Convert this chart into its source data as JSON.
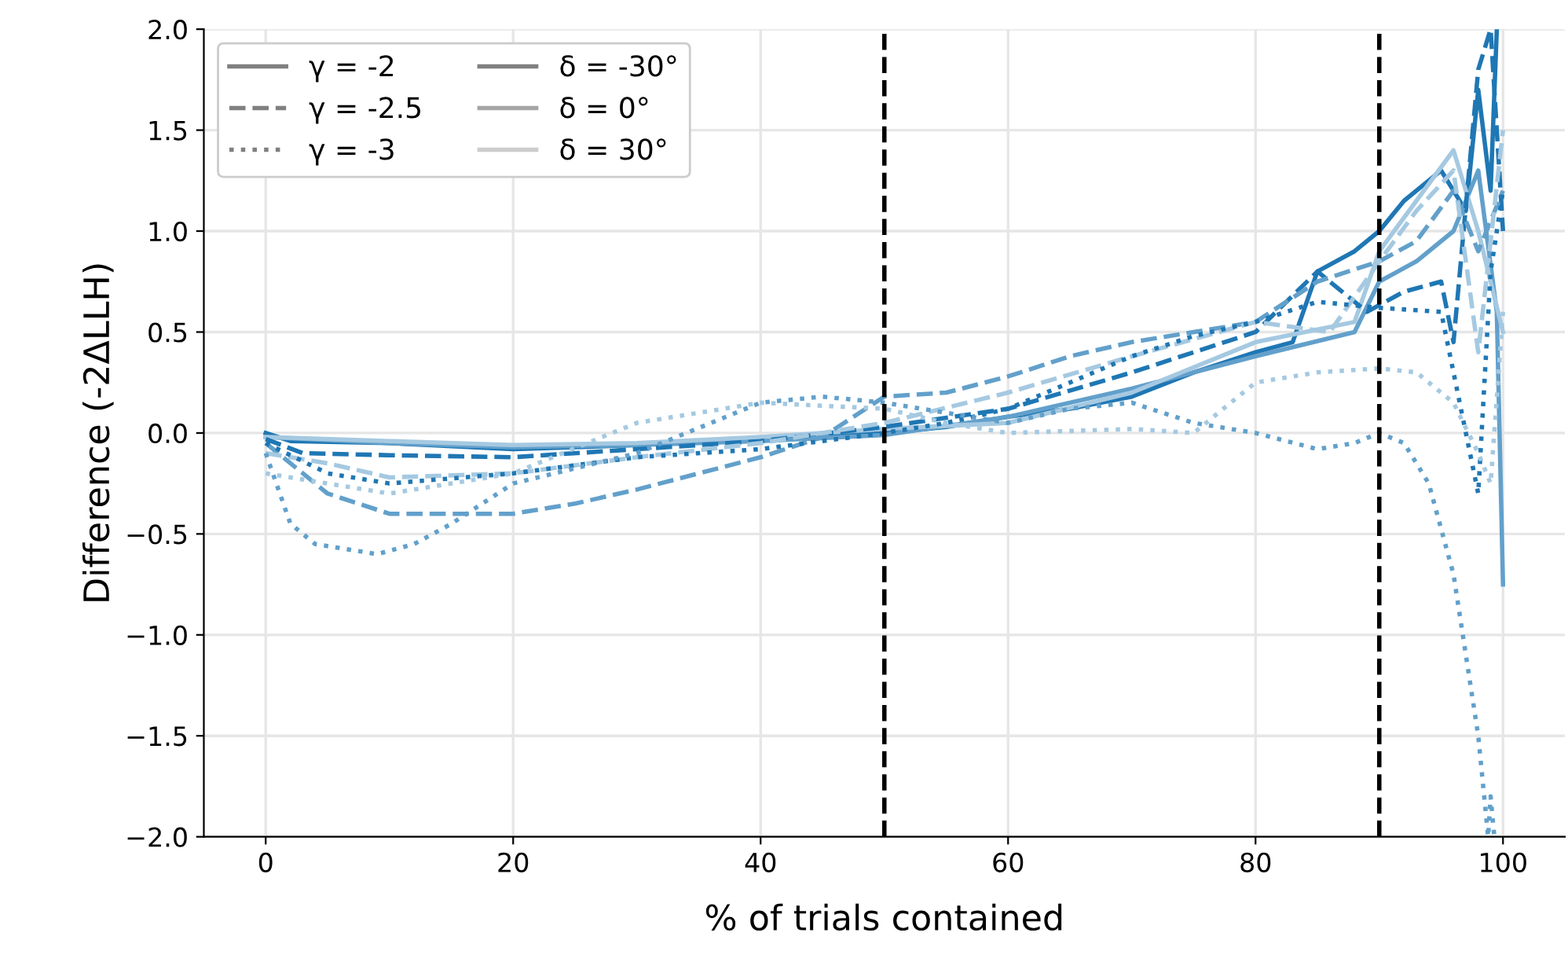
{
  "chart_data": {
    "type": "line",
    "xlabel": "% of trials contained",
    "ylabel": "Difference (-2ΔLLH)",
    "xlim": [
      -5,
      105
    ],
    "ylim": [
      -2.0,
      2.0
    ],
    "xticks": [
      0,
      20,
      40,
      60,
      80,
      100
    ],
    "yticks": [
      {
        "value": -2.0,
        "label": "−2.0"
      },
      {
        "value": -1.5,
        "label": "−1.5"
      },
      {
        "value": -1.0,
        "label": "−1.0"
      },
      {
        "value": -0.5,
        "label": "−0.5"
      },
      {
        "value": 0.0,
        "label": "0.0"
      },
      {
        "value": 0.5,
        "label": "0.5"
      },
      {
        "value": 1.0,
        "label": "1.0"
      },
      {
        "value": 1.5,
        "label": "1.5"
      },
      {
        "value": 2.0,
        "label": "2.0"
      }
    ],
    "grid": true,
    "legend": "top left",
    "ref_lines": [
      {
        "axis": "x",
        "value": 50,
        "color": "#000000",
        "line_style": "dashed"
      },
      {
        "axis": "x",
        "value": 90,
        "color": "#000000",
        "line_style": "dashed"
      }
    ],
    "series": [
      {
        "color": "#1f77b4",
        "line_style": "solid",
        "x": [
          0,
          2,
          10,
          20,
          30,
          40,
          50,
          55,
          60,
          65,
          70,
          75,
          80,
          83,
          85,
          88,
          90,
          92,
          95,
          97,
          98,
          99,
          99.5
        ],
        "values": [
          0.0,
          -0.04,
          -0.05,
          -0.08,
          -0.06,
          -0.03,
          0.0,
          0.03,
          0.08,
          0.12,
          0.18,
          0.3,
          0.4,
          0.45,
          0.8,
          0.9,
          1.0,
          1.15,
          1.3,
          1.1,
          1.7,
          1.2,
          2.0
        ]
      },
      {
        "color": "#62a0cb",
        "line_style": "solid",
        "x": [
          0,
          10,
          20,
          30,
          40,
          50,
          60,
          70,
          80,
          88,
          90,
          93,
          96,
          98,
          99.5,
          100
        ],
        "values": [
          -0.02,
          -0.05,
          -0.07,
          -0.06,
          -0.04,
          -0.01,
          0.08,
          0.22,
          0.38,
          0.5,
          0.75,
          0.85,
          1.0,
          1.3,
          0.6,
          -0.75
        ]
      },
      {
        "color": "#a5c9e1",
        "line_style": "solid",
        "x": [
          0,
          10,
          20,
          30,
          40,
          50,
          60,
          70,
          80,
          88,
          90,
          93,
          96,
          98,
          100
        ],
        "values": [
          -0.02,
          -0.04,
          -0.06,
          -0.05,
          -0.02,
          0.02,
          0.05,
          0.2,
          0.45,
          0.55,
          0.9,
          1.15,
          1.4,
          1.0,
          0.5
        ]
      },
      {
        "color": "#1f77b4",
        "line_style": "dashed",
        "x": [
          0,
          3,
          10,
          20,
          30,
          40,
          50,
          60,
          70,
          80,
          85,
          89,
          92,
          95,
          96,
          98,
          99,
          100
        ],
        "values": [
          -0.03,
          -0.1,
          -0.11,
          -0.12,
          -0.08,
          -0.04,
          0.03,
          0.12,
          0.3,
          0.5,
          0.8,
          0.6,
          0.7,
          0.75,
          0.45,
          1.8,
          2.0,
          1.0
        ]
      },
      {
        "color": "#62a0cb",
        "line_style": "dashed",
        "x": [
          0,
          5,
          10,
          15,
          20,
          25,
          30,
          35,
          40,
          45,
          50,
          55,
          60,
          65,
          70,
          75,
          80,
          85,
          90,
          93,
          96,
          98,
          100
        ],
        "values": [
          -0.05,
          -0.3,
          -0.4,
          -0.4,
          -0.4,
          -0.35,
          -0.28,
          -0.2,
          -0.12,
          -0.02,
          0.18,
          0.2,
          0.28,
          0.38,
          0.45,
          0.5,
          0.55,
          0.75,
          0.85,
          0.95,
          1.2,
          0.9,
          1.2
        ]
      },
      {
        "color": "#a5c9e1",
        "line_style": "dashed",
        "x": [
          0,
          5,
          10,
          20,
          30,
          40,
          50,
          60,
          70,
          80,
          86,
          90,
          93,
          96,
          98,
          100
        ],
        "values": [
          -0.1,
          -0.15,
          -0.22,
          -0.2,
          -0.12,
          -0.05,
          0.05,
          0.2,
          0.38,
          0.55,
          0.5,
          0.85,
          1.1,
          1.3,
          0.4,
          1.5
        ]
      },
      {
        "color": "#1f77b4",
        "line_style": "dotted",
        "x": [
          0,
          5,
          10,
          20,
          30,
          40,
          50,
          55,
          60,
          65,
          70,
          75,
          80,
          85,
          90,
          95,
          96,
          98,
          99,
          100
        ],
        "values": [
          -0.05,
          -0.2,
          -0.25,
          -0.2,
          -0.12,
          -0.08,
          0.0,
          0.05,
          0.12,
          0.25,
          0.38,
          0.48,
          0.55,
          0.65,
          0.62,
          0.6,
          0.3,
          -0.3,
          0.8,
          1.2
        ]
      },
      {
        "color": "#62a0cb",
        "line_style": "dotted",
        "x": [
          0,
          2,
          4,
          9,
          12,
          15,
          20,
          30,
          40,
          45,
          50,
          55,
          60,
          65,
          70,
          75,
          80,
          85,
          88,
          90,
          92,
          94,
          96,
          98,
          98.8,
          99,
          99.3
        ],
        "values": [
          -0.1,
          -0.45,
          -0.55,
          -0.6,
          -0.55,
          -0.45,
          -0.25,
          -0.1,
          0.15,
          0.18,
          0.15,
          0.1,
          0.05,
          0.12,
          0.15,
          0.05,
          0.0,
          -0.08,
          -0.05,
          0.0,
          -0.05,
          -0.25,
          -0.7,
          -1.5,
          -2.0,
          -1.8,
          -2.0
        ]
      },
      {
        "color": "#a5c9e1",
        "line_style": "dotted",
        "x": [
          0,
          5,
          10,
          20,
          30,
          40,
          50,
          55,
          60,
          70,
          75,
          80,
          85,
          90,
          93,
          96,
          98,
          99,
          100
        ],
        "values": [
          -0.2,
          -0.25,
          -0.3,
          -0.2,
          0.05,
          0.15,
          0.12,
          0.05,
          0.0,
          0.02,
          0.0,
          0.25,
          0.3,
          0.32,
          0.3,
          0.15,
          -0.1,
          -0.25,
          0.6
        ]
      },
      {
        "name": "γ = -2",
        "color": "#808080",
        "line_style": "solid"
      },
      {
        "name": "γ = -2.5",
        "color": "#808080",
        "line_style": "dashed"
      },
      {
        "name": "γ = -3",
        "color": "#808080",
        "line_style": "dotted"
      },
      {
        "name": "δ = -30°",
        "color": "#808080",
        "line_style": "solid"
      },
      {
        "name": "δ = 0°",
        "color": "#a6a6a6",
        "line_style": "solid"
      },
      {
        "name": "δ = 30°",
        "color": "#cccccc",
        "line_style": "solid"
      }
    ]
  }
}
